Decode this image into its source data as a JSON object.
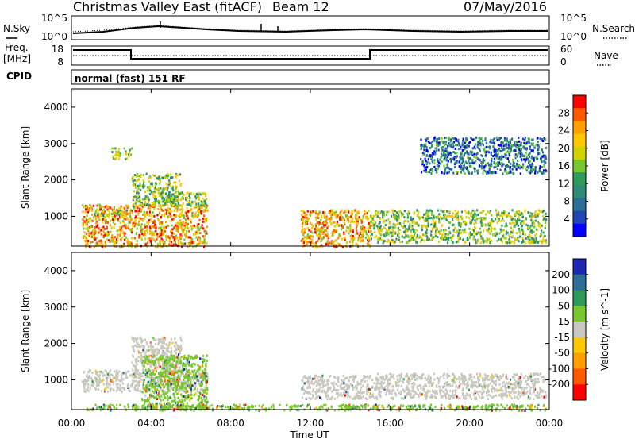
{
  "header": {
    "station": "Christmas Valley East (fitACF)",
    "beam": "Beam 12",
    "date": "07/May/2016"
  },
  "panels": {
    "nsky_label": "N.Sky",
    "nsearch_label": "N.Search",
    "nsky_ticks": [
      "10^5",
      "10^0"
    ],
    "nsearch_ticks": [
      "10^5",
      "10^0"
    ],
    "freq_label_1": "Freq.",
    "freq_label_2": "[MHz]",
    "freq_ticks": [
      "18",
      "8"
    ],
    "nave_label": "Nave",
    "nave_ticks": [
      "60",
      "0"
    ],
    "cpid_label": "CPID",
    "cpid_text": "normal (fast) 151 RF"
  },
  "chart_data": [
    {
      "type": "heatmap",
      "name": "power",
      "ylabel": "Slant Range [km]",
      "yticks": [
        "4000",
        "3000",
        "2000",
        "1000"
      ],
      "ylim": [
        180,
        4500
      ],
      "xlim": [
        0,
        24
      ],
      "xticks": [
        "00:00",
        "04:00",
        "08:00",
        "12:00",
        "16:00",
        "20:00",
        "00:00"
      ],
      "colorbar": {
        "label": "Power [dB]",
        "ticks": [
          "28",
          "24",
          "20",
          "16",
          "12",
          "8",
          "4"
        ],
        "colors": [
          "#ff0000",
          "#ff5a00",
          "#ffa000",
          "#ffc800",
          "#d2d200",
          "#78c82d",
          "#2d9b5a",
          "#2d8c78",
          "#2d6e96",
          "#1e46b4",
          "#0000ff"
        ]
      },
      "echo_regions": [
        {
          "t": [
            0.5,
            6.8
          ],
          "r": [
            180,
            1350
          ],
          "level": "high"
        },
        {
          "t": [
            1.0,
            3.0
          ],
          "r": [
            1050,
            1200
          ],
          "level": "medium"
        },
        {
          "t": [
            3.0,
            5.5
          ],
          "r": [
            1300,
            2200
          ],
          "level": "medium"
        },
        {
          "t": [
            4.5,
            6.8
          ],
          "r": [
            1300,
            1700
          ],
          "level": "medium"
        },
        {
          "t": [
            2.0,
            3.0
          ],
          "r": [
            2600,
            2900
          ],
          "level": "medium"
        },
        {
          "t": [
            11.5,
            15.0
          ],
          "r": [
            180,
            1200
          ],
          "level": "high"
        },
        {
          "t": [
            15.0,
            23.8
          ],
          "r": [
            300,
            1200
          ],
          "level": "medium"
        },
        {
          "t": [
            17.5,
            23.8
          ],
          "r": [
            2200,
            3200
          ],
          "level": "low"
        }
      ]
    },
    {
      "type": "heatmap",
      "name": "velocity",
      "ylabel": "Slant Range [km]",
      "yticks": [
        "4000",
        "3000",
        "2000",
        "1000"
      ],
      "ylim": [
        180,
        4500
      ],
      "xlim": [
        0,
        24
      ],
      "xticks": [
        "00:00",
        "04:00",
        "08:00",
        "12:00",
        "16:00",
        "20:00",
        "00:00"
      ],
      "xlabel": "Time UT",
      "colorbar": {
        "label": "Velocity [m s^-1]",
        "ticks": [
          "200",
          "100",
          "50",
          "15",
          "-15",
          "-50",
          "-100",
          "-200"
        ],
        "colors": [
          "#1e28b4",
          "#2d6e96",
          "#2d9b5a",
          "#78c82d",
          "#c8c8c0",
          "#ffc800",
          "#ffa000",
          "#ff5a00",
          "#ff0000"
        ]
      },
      "echo_regions": [
        {
          "t": [
            0.5,
            6.8
          ],
          "r": [
            700,
            1300
          ],
          "level": "ground"
        },
        {
          "t": [
            3.0,
            5.5
          ],
          "r": [
            1300,
            2200
          ],
          "level": "ground"
        },
        {
          "t": [
            3.5,
            6.8
          ],
          "r": [
            200,
            1700
          ],
          "level": "positive"
        },
        {
          "t": [
            11.5,
            15.0
          ],
          "r": [
            500,
            1150
          ],
          "level": "ground"
        },
        {
          "t": [
            15.0,
            23.8
          ],
          "r": [
            500,
            1200
          ],
          "level": "ground"
        },
        {
          "t": [
            0.5,
            23.8
          ],
          "r": [
            180,
            350
          ],
          "level": "positive"
        }
      ]
    }
  ]
}
